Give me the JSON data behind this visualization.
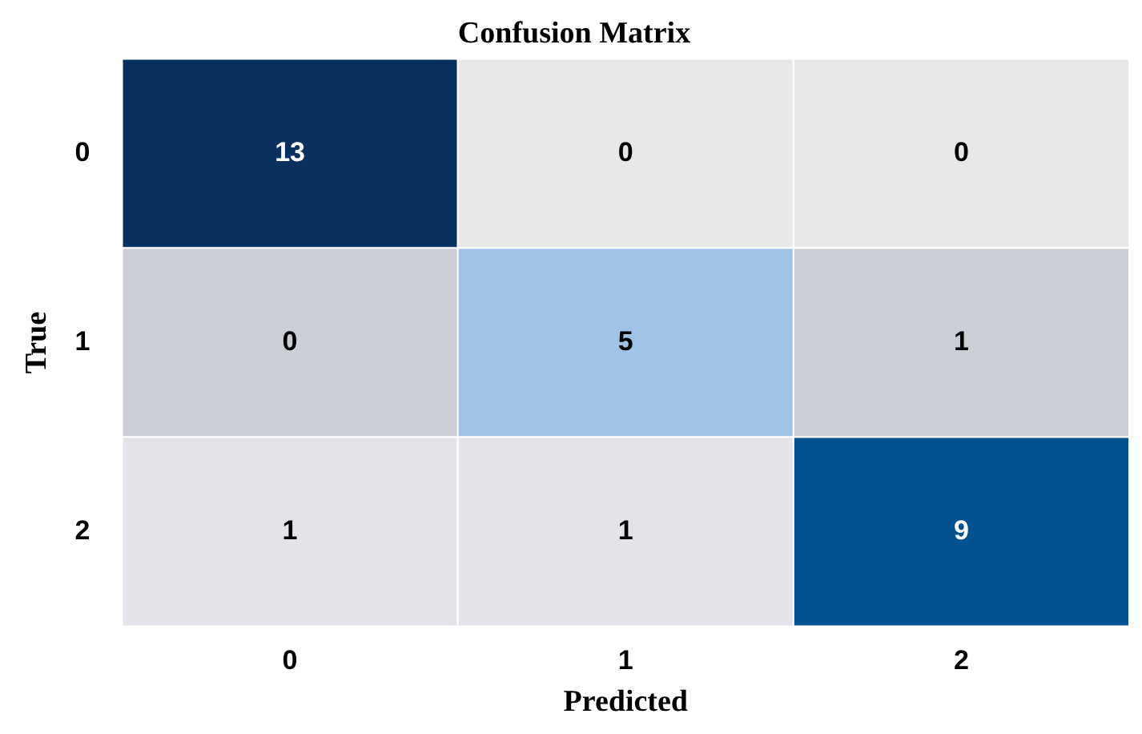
{
  "chart_data": {
    "type": "heatmap",
    "title": "Confusion Matrix",
    "xlabel": "Predicted",
    "ylabel": "True",
    "categories": [
      "0",
      "1",
      "2"
    ],
    "y_categories": [
      "0",
      "1",
      "2"
    ],
    "cells": [
      [
        13,
        0,
        0
      ],
      [
        0,
        5,
        1
      ],
      [
        1,
        1,
        9
      ]
    ],
    "colors": [
      "#08305e",
      "#e8e8e8",
      "#e8e8e8",
      "#cbced4",
      "#9fc4e8",
      "#cbced4",
      "#e3e3e9",
      "#e3e3e9",
      "#03518f"
    ],
    "data_labels": true,
    "grid": false,
    "legend": false
  }
}
